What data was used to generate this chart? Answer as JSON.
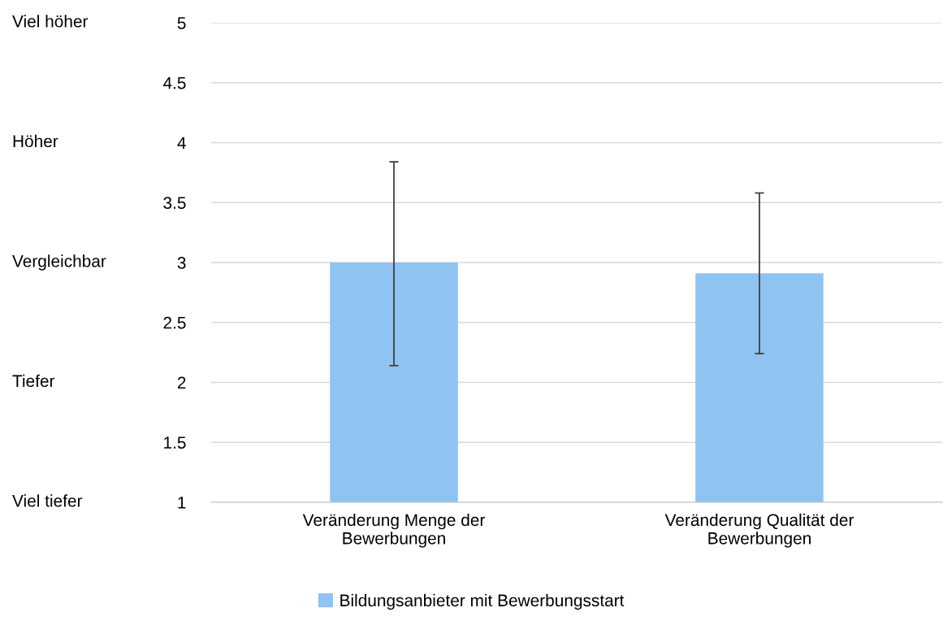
{
  "chart_data": {
    "type": "bar",
    "categories": [
      "Veränderung Menge der\nBewerbungen",
      "Veränderung Qualität der\nBewerbungen"
    ],
    "series": [
      {
        "name": "Bildungsanbieter mit Bewerbungsstart",
        "color": "#8fc3f2",
        "values": [
          3.0,
          2.91
        ],
        "errors": [
          [
            2.14,
            3.84
          ],
          [
            2.24,
            3.58
          ]
        ]
      }
    ],
    "ylim": [
      1,
      5
    ],
    "yticks": [
      1,
      1.5,
      2,
      2.5,
      3,
      3.5,
      4,
      4.5,
      5
    ],
    "annotations": [
      "Viel höher",
      "Höher",
      "Vergleichbar",
      "Tiefer",
      "Viel tiefer"
    ],
    "grid": "y",
    "legend": "bottom"
  }
}
